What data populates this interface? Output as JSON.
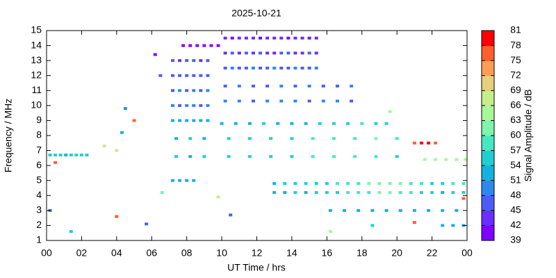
{
  "chart_data": {
    "type": "scatter",
    "title": "2025-10-21",
    "x_label": "UT Time / hrs",
    "y_label": "Frequency / MHz",
    "colorbar_label": "Signal Amplitude / dB",
    "xlim": [
      0,
      24
    ],
    "xticks": [
      {
        "value": 0,
        "label": "00"
      },
      {
        "value": 2,
        "label": "02"
      },
      {
        "value": 4,
        "label": "04"
      },
      {
        "value": 6,
        "label": "06"
      },
      {
        "value": 8,
        "label": "08"
      },
      10,
      12,
      14,
      16,
      18,
      20,
      22,
      {
        "value": 24,
        "label": "00"
      }
    ],
    "ylim": [
      1,
      15
    ],
    "yticks": [
      1,
      2,
      3,
      4,
      5,
      6,
      7,
      8,
      9,
      10,
      11,
      12,
      13,
      14,
      15
    ],
    "clim": [
      39,
      81
    ],
    "cticks": [
      39,
      42,
      45,
      48,
      51,
      54,
      57,
      60,
      63,
      66,
      69,
      72,
      75,
      78,
      81
    ],
    "colors": [
      "#8000ff",
      "#6a2efd",
      "#4d5cf7",
      "#2f88ee",
      "#17b0e2",
      "#1fd0d3",
      "#45e8c0",
      "#7df5ad",
      "#a8f79a",
      "#c6ee88",
      "#e6d07c",
      "#ff9e52",
      "#ff5f2e",
      "#ff0000"
    ],
    "x": [
      7.2,
      7.6,
      8.0,
      8.4,
      8.8,
      9.2,
      7.2,
      7.6,
      8.0,
      8.4,
      8.8,
      9.2,
      7.2,
      7.6,
      8.0,
      8.4,
      8.8,
      9.2,
      7.2,
      7.6,
      8.0,
      8.4,
      8.8,
      9.2,
      7.2,
      7.6,
      8.0,
      8.4,
      8.8,
      9.2,
      10.2,
      10.6,
      11.0,
      11.4,
      11.8,
      12.2,
      12.6,
      13.0,
      13.4,
      13.8,
      14.2,
      14.6,
      15.0,
      15.4,
      10.2,
      10.6,
      11.0,
      11.4,
      11.8,
      12.2,
      12.6,
      13.0,
      13.4,
      13.8,
      14.2,
      14.6,
      15.0,
      15.4,
      10.2,
      10.6,
      11.0,
      11.4,
      11.8,
      12.2,
      12.6,
      13.0,
      13.4,
      13.8,
      14.2,
      14.6,
      15.0,
      15.4,
      7.8,
      8.2,
      8.6,
      9.0,
      9.4,
      9.8,
      10.2,
      11.0,
      11.8,
      12.6,
      13.4,
      14.2,
      15.0,
      15.8,
      16.6,
      17.4,
      10.2,
      11.0,
      11.8,
      12.6,
      13.4,
      14.2,
      15.0,
      15.8,
      16.6,
      17.4,
      10.0,
      10.8,
      11.6,
      12.4,
      13.2,
      14.0,
      14.8,
      15.6,
      16.4,
      17.2,
      18.0,
      18.8,
      19.4,
      7.4,
      8.2,
      9.0,
      10.4,
      11.6,
      12.8,
      14.0,
      15.2,
      16.4,
      17.6,
      18.8,
      20.0,
      7.4,
      8.2,
      9.0,
      10.4,
      11.6,
      12.8,
      14.0,
      15.2,
      16.4,
      17.6,
      18.8,
      20.0,
      13.0,
      13.6,
      14.2,
      14.8,
      15.4,
      16.0,
      16.6,
      17.2,
      17.8,
      18.4,
      19.0,
      19.6,
      20.2,
      20.8,
      21.4,
      22.0,
      22.6,
      23.2,
      23.8,
      13.0,
      13.6,
      14.2,
      14.8,
      15.4,
      16.0,
      16.6,
      17.2,
      17.8,
      18.4,
      19.0,
      19.6,
      20.2,
      20.8,
      21.4,
      22.0,
      22.6,
      23.2,
      23.8,
      0.2,
      0.5,
      0.8,
      1.1,
      1.4,
      1.7,
      2.0,
      2.3,
      16.2,
      17.0,
      17.8,
      18.6,
      19.4,
      20.2,
      21.0,
      21.8,
      22.6,
      23.4,
      22.6,
      23.2,
      23.8,
      21.6,
      22.2,
      22.8,
      23.4,
      23.9,
      21.0,
      21.4,
      21.8,
      22.2,
      7.2,
      7.6,
      8.0,
      8.4,
      6.2,
      6.5,
      4.5,
      5.0,
      4.3,
      4.0,
      3.3,
      0.5,
      4.0,
      21.0,
      0.2,
      1.4,
      6.6,
      9.8,
      10.5,
      5.7,
      16.2,
      19.6,
      18.6,
      23.8
    ],
    "y": [
      9,
      9,
      9,
      9,
      9,
      9,
      10,
      10,
      10,
      10,
      10,
      10,
      11,
      11,
      11,
      11,
      11,
      11,
      12,
      12,
      12,
      12,
      12,
      12,
      13,
      13,
      13,
      13,
      13,
      13,
      12.5,
      12.5,
      12.5,
      12.5,
      12.5,
      12.5,
      12.5,
      12.5,
      12.5,
      12.5,
      12.5,
      12.5,
      12.5,
      12.5,
      13.5,
      13.5,
      13.5,
      13.5,
      13.5,
      13.5,
      13.5,
      13.5,
      13.5,
      13.5,
      13.5,
      13.5,
      13.5,
      13.5,
      14.5,
      14.5,
      14.5,
      14.5,
      14.5,
      14.5,
      14.5,
      14.5,
      14.5,
      14.5,
      14.5,
      14.5,
      14.5,
      14.5,
      14,
      14,
      14,
      14,
      14,
      14,
      10.3,
      10.3,
      10.3,
      10.3,
      10.3,
      10.3,
      10.3,
      10.3,
      10.3,
      10.3,
      11.3,
      11.3,
      11.3,
      11.3,
      11.3,
      11.3,
      11.3,
      11.3,
      11.3,
      11.3,
      8.8,
      8.8,
      8.8,
      8.8,
      8.8,
      8.8,
      8.8,
      8.8,
      8.8,
      8.8,
      8.8,
      8.8,
      8.8,
      7.8,
      7.8,
      7.8,
      7.8,
      7.8,
      7.8,
      7.8,
      7.8,
      7.8,
      7.8,
      7.8,
      7.8,
      6.6,
      6.6,
      6.6,
      6.6,
      6.6,
      6.6,
      6.6,
      6.6,
      6.6,
      6.6,
      6.6,
      6.6,
      4.8,
      4.8,
      4.8,
      4.8,
      4.8,
      4.8,
      4.8,
      4.8,
      4.8,
      4.8,
      4.8,
      4.8,
      4.8,
      4.8,
      4.8,
      4.8,
      4.8,
      4.8,
      4.8,
      4.2,
      4.2,
      4.2,
      4.2,
      4.2,
      4.2,
      4.2,
      4.2,
      4.2,
      4.2,
      4.2,
      4.2,
      4.2,
      4.2,
      4.2,
      4.2,
      4.2,
      4.2,
      4.2,
      6.7,
      6.7,
      6.7,
      6.7,
      6.7,
      6.7,
      6.7,
      6.7,
      3,
      3,
      3,
      3,
      3,
      3,
      3,
      3,
      3,
      3,
      2,
      2,
      2,
      6.4,
      6.4,
      6.4,
      6.4,
      6.4,
      7.5,
      7.5,
      7.5,
      7.5,
      5,
      5,
      5,
      5,
      13.4,
      12.0,
      9.8,
      9.0,
      8.2,
      7.0,
      7.3,
      6.2,
      2.6,
      2.2,
      3.0,
      1.6,
      4.2,
      3.9,
      2.7,
      2.1,
      1.6,
      9.6,
      2.0,
      3.8
    ],
    "values": [
      52,
      53,
      51,
      52,
      53,
      51,
      48,
      47,
      49,
      48,
      46,
      48,
      47,
      48,
      46,
      49,
      47,
      48,
      46,
      47,
      45,
      47,
      46,
      45,
      45,
      44,
      46,
      45,
      44,
      46,
      47,
      48,
      46,
      47,
      48,
      46,
      47,
      48,
      46,
      47,
      48,
      47,
      46,
      48,
      44,
      45,
      43,
      46,
      44,
      45,
      43,
      44,
      46,
      45,
      44,
      43,
      45,
      44,
      42,
      41,
      43,
      42,
      44,
      41,
      42,
      43,
      42,
      41,
      43,
      42,
      41,
      42,
      40,
      41,
      40,
      40,
      41,
      40,
      48,
      49,
      47,
      48,
      49,
      48,
      47,
      49,
      48,
      47,
      47,
      48,
      47,
      46,
      48,
      47,
      48,
      46,
      47,
      48,
      52,
      53,
      52,
      54,
      53,
      52,
      53,
      54,
      55,
      56,
      57,
      55,
      54,
      53,
      54,
      52,
      54,
      55,
      54,
      56,
      57,
      58,
      59,
      60,
      57,
      54,
      53,
      55,
      54,
      55,
      56,
      55,
      58,
      57,
      59,
      58,
      56,
      53,
      54,
      55,
      54,
      56,
      55,
      57,
      58,
      59,
      60,
      62,
      61,
      60,
      58,
      57,
      56,
      55,
      57,
      58,
      52,
      53,
      54,
      53,
      55,
      54,
      56,
      57,
      58,
      59,
      61,
      60,
      58,
      57,
      55,
      54,
      53,
      55,
      56,
      54,
      55,
      54,
      53,
      55,
      54,
      55,
      54,
      51,
      52,
      51,
      53,
      52,
      51,
      52,
      53,
      52,
      51,
      51,
      52,
      51,
      64,
      63,
      65,
      64,
      63,
      77,
      78,
      80,
      76,
      52,
      51,
      53,
      52,
      41,
      45,
      49,
      77,
      53,
      66,
      68,
      77,
      76,
      76,
      47,
      54,
      62,
      67,
      46,
      47,
      63,
      63,
      55,
      75
    ]
  }
}
